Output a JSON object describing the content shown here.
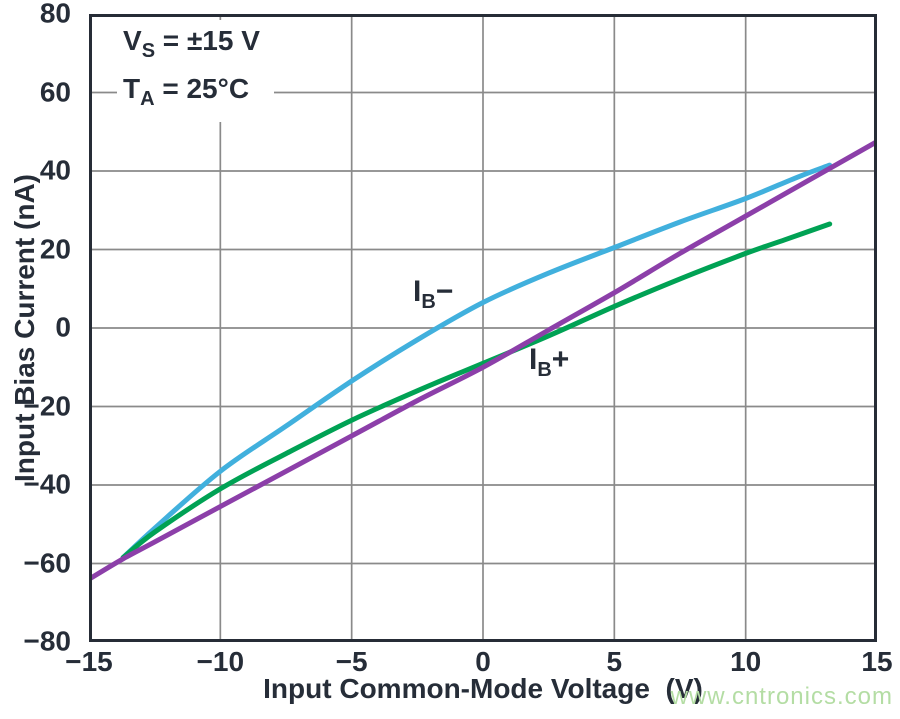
{
  "figure": {
    "annotation": {
      "line1": {
        "base": "V",
        "sub": "S",
        "rest": " = ±15 V"
      },
      "line2": {
        "base": "T",
        "sub": "A",
        "rest": " = 25°C"
      }
    },
    "curve_labels": {
      "ib_minus": {
        "base": "I",
        "sub": "B",
        "rest": "−"
      },
      "ib_plus": {
        "base": "I",
        "sub": "B",
        "rest": "+"
      }
    },
    "watermark": "www.cntronics.com"
  },
  "colors": {
    "frame": "#262c36",
    "grid": "#8a8a8a",
    "text": "#262d38",
    "watermark": "#b4dda4",
    "ib_minus_blue": "#41b0dd",
    "ib_plus_green": "#00a254",
    "unlabeled_purple": "#8c3fa9"
  },
  "chart_data": {
    "type": "line",
    "title": "",
    "xlabel": "Input Common-Mode Voltage  (V)",
    "ylabel": "Input Bias Current (nA)",
    "xlim": [
      -15,
      15
    ],
    "ylim": [
      -80,
      80
    ],
    "xticks": [
      -15,
      -10,
      -5,
      0,
      5,
      10,
      15
    ],
    "yticks": [
      80,
      60,
      40,
      20,
      0,
      -20,
      -40,
      -60,
      -80
    ],
    "grid": true,
    "legend_position": "none",
    "annotations": [
      "VS = ±15 V",
      "TA = 25°C"
    ],
    "series": [
      {
        "name": "IB−",
        "color": "#41b0dd",
        "x": [
          -13.7,
          -12.5,
          -10,
          -7.5,
          -5,
          -2.5,
          0,
          2.5,
          5,
          7.5,
          10,
          12,
          13.2
        ],
        "y": [
          -58.5,
          -51,
          -36.5,
          -25,
          -13.5,
          -3,
          6.5,
          14,
          20.5,
          27,
          33,
          38.5,
          41.5
        ]
      },
      {
        "name": "IB+",
        "color": "#00a254",
        "x": [
          -13.7,
          -12.5,
          -10,
          -7.5,
          -5,
          -2.5,
          0,
          2.5,
          5,
          7.5,
          10,
          11.5,
          13.2
        ],
        "y": [
          -58.5,
          -52,
          -41,
          -32,
          -23.5,
          -16,
          -9,
          -2,
          5.5,
          12.5,
          19,
          22.5,
          26.5
        ]
      },
      {
        "name": "",
        "color": "#8c3fa9",
        "x": [
          -15,
          -13.7,
          -12.5,
          -10,
          -7.5,
          -5,
          -2.5,
          0,
          2.5,
          5,
          7.5,
          10,
          12.5,
          15
        ],
        "y": [
          -64,
          -58.8,
          -54.5,
          -45.5,
          -36.5,
          -27.5,
          -18.5,
          -10,
          -0.5,
          9,
          19,
          28.5,
          38,
          47.5
        ]
      }
    ]
  }
}
